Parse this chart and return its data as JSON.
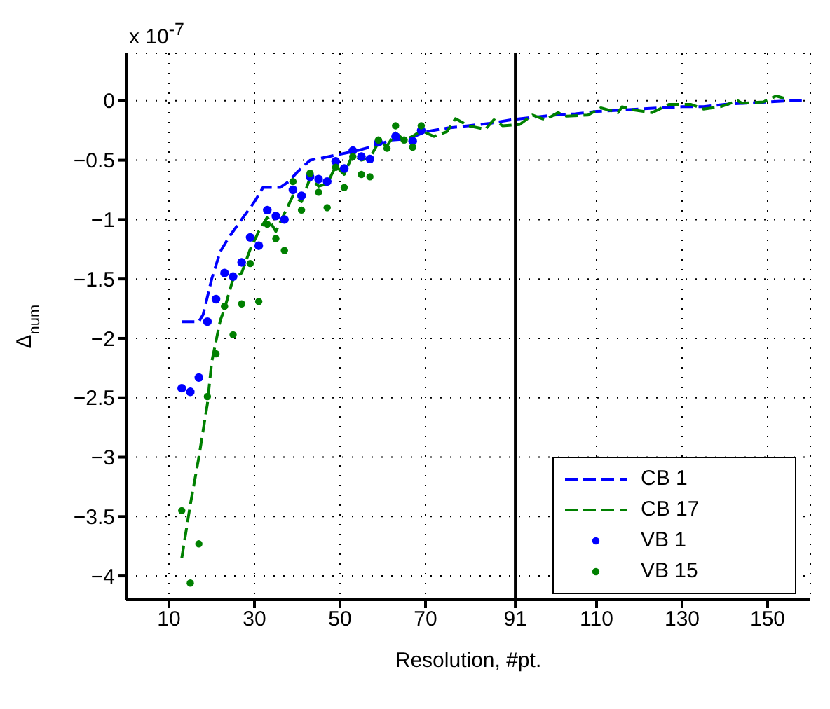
{
  "chart_data": {
    "type": "line",
    "xlabel": "Resolution, #pt.",
    "ylabel": "Δ$_{num}$",
    "annotations": [
      "x 10$^{-7}$"
    ],
    "xlim": [
      0,
      160
    ],
    "xticks": [
      10,
      30,
      50,
      70,
      91,
      110,
      130,
      150
    ],
    "ylim": [
      -4.2,
      0.4
    ],
    "yticks": [
      0,
      -0.5,
      -1,
      -1.5,
      -2,
      -2.5,
      -3,
      -3.5,
      -4
    ],
    "grid": true,
    "legend": "bottom right",
    "ref_lines": [
      {
        "axis": "x",
        "value": 91,
        "color": "#000000",
        "line_style": "solid"
      }
    ],
    "series": [
      {
        "name": "CB 1",
        "color": "#0000ff",
        "line_style": "dashed",
        "marker": "none",
        "x": [
          13,
          17,
          18,
          20,
          22,
          24,
          26,
          28,
          30,
          32,
          36,
          38,
          40,
          43,
          46,
          50,
          54,
          58,
          62,
          66,
          70,
          75,
          80,
          85,
          90,
          95,
          100,
          105,
          110,
          115,
          120,
          125,
          130,
          135,
          140,
          145,
          150,
          155,
          158
        ],
        "values": [
          -1.86,
          -1.86,
          -1.8,
          -1.5,
          -1.27,
          -1.15,
          -1.05,
          -0.95,
          -0.85,
          -0.73,
          -0.73,
          -0.68,
          -0.6,
          -0.5,
          -0.48,
          -0.45,
          -0.42,
          -0.38,
          -0.33,
          -0.32,
          -0.26,
          -0.23,
          -0.21,
          -0.19,
          -0.16,
          -0.14,
          -0.12,
          -0.11,
          -0.09,
          -0.08,
          -0.07,
          -0.06,
          -0.05,
          -0.05,
          -0.03,
          -0.02,
          -0.01,
          0.0,
          0.0
        ]
      },
      {
        "name": "CB 17",
        "color": "#008000",
        "line_style": "dashed",
        "marker": "none",
        "x": [
          13,
          15,
          17,
          19,
          20,
          22,
          23,
          25,
          27,
          29,
          31,
          33,
          35,
          37,
          39,
          41,
          43,
          45,
          47,
          49,
          51,
          53,
          55,
          57,
          59,
          61,
          63,
          65,
          67,
          69,
          72,
          75,
          77,
          80,
          84,
          86,
          88,
          92,
          95,
          98,
          101,
          103,
          108,
          111,
          115,
          116,
          119,
          123,
          127,
          132,
          135,
          139,
          143,
          144,
          149,
          152,
          154
        ],
        "values": [
          -3.85,
          -3.4,
          -3.0,
          -2.55,
          -2.2,
          -1.85,
          -1.75,
          -1.5,
          -1.45,
          -1.25,
          -1.1,
          -0.98,
          -1.1,
          -0.95,
          -0.8,
          -0.85,
          -0.65,
          -0.72,
          -0.7,
          -0.55,
          -0.62,
          -0.45,
          -0.5,
          -0.48,
          -0.35,
          -0.38,
          -0.27,
          -0.33,
          -0.3,
          -0.25,
          -0.3,
          -0.26,
          -0.15,
          -0.21,
          -0.24,
          -0.16,
          -0.21,
          -0.2,
          -0.12,
          -0.16,
          -0.1,
          -0.13,
          -0.12,
          -0.06,
          -0.1,
          -0.05,
          -0.08,
          -0.1,
          -0.03,
          -0.03,
          -0.07,
          -0.05,
          0.0,
          -0.02,
          -0.01,
          0.04,
          0.02
        ]
      },
      {
        "name": "VB 1",
        "type": "scatter",
        "color": "#0000ff",
        "marker": "circle",
        "x": [
          13,
          15,
          17,
          19,
          21,
          23,
          25,
          27,
          29,
          31,
          33,
          35,
          37,
          39,
          41,
          43,
          45,
          47,
          49,
          51,
          53,
          55,
          57,
          59,
          63,
          67,
          69
        ],
        "values": [
          -2.42,
          -2.45,
          -2.33,
          -1.86,
          -1.67,
          -1.45,
          -1.48,
          -1.36,
          -1.15,
          -1.22,
          -0.92,
          -0.97,
          -1.0,
          -0.75,
          -0.8,
          -0.64,
          -0.66,
          -0.68,
          -0.51,
          -0.57,
          -0.42,
          -0.47,
          -0.49,
          -0.35,
          -0.3,
          -0.34,
          -0.25
        ]
      },
      {
        "name": "VB 15",
        "type": "scatter",
        "color": "#008000",
        "marker": "circle",
        "x": [
          13,
          15,
          17,
          19,
          21,
          23,
          25,
          27,
          29,
          31,
          33,
          35,
          37,
          39,
          41,
          43,
          45,
          47,
          49,
          51,
          53,
          55,
          57,
          59,
          61,
          63,
          65,
          67,
          69
        ],
        "values": [
          -3.45,
          -4.06,
          -3.73,
          -2.49,
          -2.13,
          -1.73,
          -1.97,
          -1.71,
          -1.37,
          -1.69,
          -1.04,
          -1.16,
          -1.26,
          -0.68,
          -0.92,
          -0.61,
          -0.77,
          -0.9,
          -0.56,
          -0.73,
          -0.47,
          -0.62,
          -0.64,
          -0.33,
          -0.4,
          -0.21,
          -0.33,
          -0.39,
          -0.21
        ]
      }
    ]
  }
}
